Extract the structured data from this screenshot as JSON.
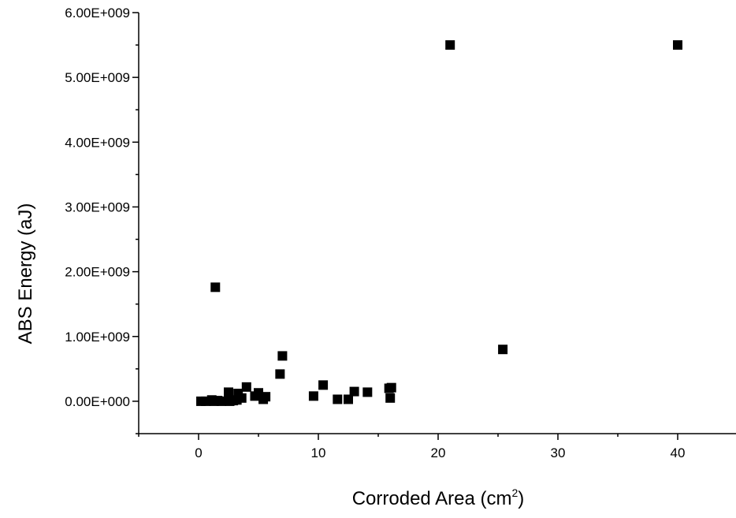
{
  "chart_data": {
    "type": "scatter",
    "xlabel": "Corroded Area (cm",
    "xlabel_sup": "2",
    "xlabel_close": ")",
    "ylabel": "ABS Energy (aJ)",
    "xlim": [
      -5,
      45
    ],
    "ylim": [
      -500000000,
      6000000000
    ],
    "x_ticks": [
      0,
      10,
      20,
      30,
      40
    ],
    "x_tick_labels": [
      "0",
      "10",
      "20",
      "30",
      "40"
    ],
    "y_ticks": [
      0,
      1000000000,
      2000000000,
      3000000000,
      4000000000,
      5000000000,
      6000000000
    ],
    "y_tick_labels": [
      "0.00E+000",
      "1.00E+009",
      "2.00E+009",
      "3.00E+009",
      "4.00E+009",
      "5.00E+009",
      "6.00E+009"
    ],
    "marker": "square",
    "marker_color": "#000000",
    "series": [
      {
        "points": [
          [
            0.2,
            0
          ],
          [
            0.6,
            0
          ],
          [
            1.1,
            20000000
          ],
          [
            1.3,
            0
          ],
          [
            1.6,
            10000000
          ],
          [
            1.9,
            0
          ],
          [
            2.5,
            140000000
          ],
          [
            2.6,
            0
          ],
          [
            2.9,
            10000000
          ],
          [
            3.3,
            120000000
          ],
          [
            3.6,
            50000000
          ],
          [
            3.2,
            20000000
          ],
          [
            4.0,
            220000000
          ],
          [
            4.7,
            80000000
          ],
          [
            5.0,
            130000000
          ],
          [
            5.4,
            30000000
          ],
          [
            5.6,
            70000000
          ],
          [
            6.8,
            420000000
          ],
          [
            7.0,
            700000000
          ],
          [
            9.6,
            80000000
          ],
          [
            10.4,
            250000000
          ],
          [
            11.6,
            30000000
          ],
          [
            12.5,
            30000000
          ],
          [
            13.0,
            150000000
          ],
          [
            14.1,
            140000000
          ],
          [
            15.9,
            200000000
          ],
          [
            16.0,
            50000000
          ],
          [
            16.1,
            210000000
          ],
          [
            1.4,
            1760000000
          ],
          [
            21.0,
            5500000000
          ],
          [
            25.4,
            800000000
          ],
          [
            40.0,
            5500000000
          ]
        ]
      }
    ]
  }
}
